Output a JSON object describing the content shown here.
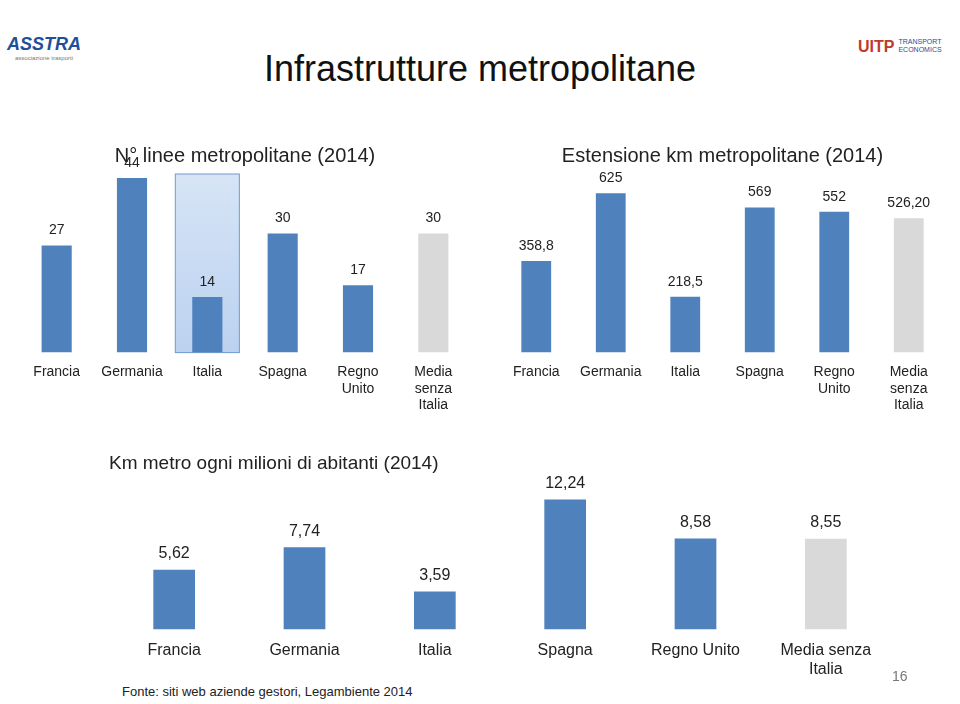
{
  "title": "Infrastrutture metropolitane",
  "logos": {
    "left": {
      "name": "ASSTRA",
      "subtitle": "associazione trasporti"
    },
    "right": {
      "name": "UITP",
      "subtitle": [
        "TRANSPORT",
        "ECONOMICS"
      ]
    }
  },
  "chart_data": [
    {
      "type": "bar",
      "title": "N° linee metropolitane (2014)",
      "categories": [
        "Francia",
        "Germania",
        "Italia",
        "Spagna",
        "Regno Unito",
        "Media senza Italia"
      ],
      "values": [
        27,
        44,
        14,
        30,
        17,
        30
      ],
      "colors": [
        "#4f81bd",
        "#4f81bd",
        "#4f81bd",
        "#4f81bd",
        "#4f81bd",
        "#d9d9d9"
      ],
      "grid": false,
      "data_labels": true,
      "tick_labels": "x"
    },
    {
      "type": "bar",
      "title": "Estensione km metropolitane (2014)",
      "categories": [
        "Francia",
        "Germania",
        "Italia",
        "Spagna",
        "Regno Unito",
        "Media senza Italia"
      ],
      "values": [
        358.8,
        625,
        218.5,
        569,
        552,
        526.2
      ],
      "value_labels": [
        "358,8",
        "625",
        "218,5",
        "569",
        "552",
        "526,20"
      ],
      "colors": [
        "#4f81bd",
        "#4f81bd",
        "#4f81bd",
        "#4f81bd",
        "#4f81bd",
        "#d9d9d9"
      ],
      "grid": false,
      "data_labels": true,
      "tick_labels": "x"
    },
    {
      "type": "bar",
      "title": "Km metro ogni milioni di abitanti (2014)",
      "categories": [
        "Francia",
        "Germania",
        "Italia",
        "Spagna",
        "Regno Unito",
        "Media senza Italia"
      ],
      "values": [
        5.62,
        7.74,
        3.59,
        12.24,
        8.58,
        8.55
      ],
      "value_labels": [
        "5,62",
        "7,74",
        "3,59",
        "12,24",
        "8,58",
        "8,55"
      ],
      "colors": [
        "#4f81bd",
        "#4f81bd",
        "#4f81bd",
        "#4f81bd",
        "#4f81bd",
        "#d9d9d9"
      ],
      "grid": false,
      "data_labels": true,
      "tick_labels": "x"
    }
  ],
  "source": "Fonte: siti web aziende gestori, Legambiente 2014",
  "page_number": 16
}
